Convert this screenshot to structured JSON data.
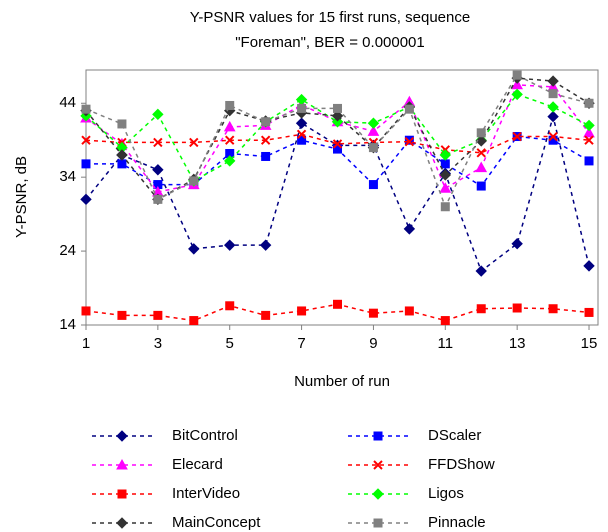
{
  "chart_data": {
    "type": "line",
    "title": [
      "Y-PSNR values for 15 first runs, sequence",
      "\"Foreman\", BER = 0.000001"
    ],
    "x_label": "Number of run",
    "y_label": "Y-PSNR, dB",
    "x": [
      1,
      2,
      3,
      4,
      5,
      6,
      7,
      8,
      9,
      10,
      11,
      12,
      13,
      14,
      15
    ],
    "xlim": [
      1,
      15.25
    ],
    "xticks": [
      1,
      3,
      5,
      7,
      9,
      11,
      13,
      15
    ],
    "ylim": [
      14,
      48.5
    ],
    "yticks": [
      14,
      24,
      34,
      44
    ],
    "grid": false,
    "legend": "bottom",
    "series": [
      {
        "name": "BitControl",
        "color": "#000080",
        "marker": "diamond",
        "values": [
          31,
          37,
          35,
          24.3,
          24.8,
          24.8,
          41.3,
          38.3,
          38.3,
          27,
          34.5,
          21.3,
          25,
          42.2,
          22
        ]
      },
      {
        "name": "DScaler",
        "color": "#0000ff",
        "marker": "square",
        "values": [
          35.8,
          35.8,
          33,
          33,
          37.2,
          36.8,
          39,
          37.8,
          33,
          39,
          35.8,
          32.8,
          39.5,
          39,
          36.2
        ]
      },
      {
        "name": "Elecard",
        "color": "#ff00ff",
        "marker": "triangle",
        "values": [
          42,
          38.5,
          32,
          33,
          40.8,
          41,
          43.8,
          41.5,
          40.2,
          44.2,
          32.5,
          35.3,
          46.5,
          46.2,
          40
        ]
      },
      {
        "name": "FFDShow",
        "color": "#ff0000",
        "marker": "x",
        "values": [
          39,
          38.7,
          38.7,
          38.7,
          39,
          39,
          39.8,
          38.5,
          38.7,
          38.8,
          37.7,
          37.3,
          39.5,
          39.5,
          39
        ]
      },
      {
        "name": "InterVideo",
        "color": "#ff0000",
        "marker": "square",
        "values": [
          15.9,
          15.3,
          15.3,
          14.6,
          16.6,
          15.3,
          15.9,
          16.8,
          15.6,
          15.9,
          14.6,
          16.2,
          16.3,
          16.2,
          15.7
        ]
      },
      {
        "name": "Ligos",
        "color": "#00ff00",
        "marker": "diamond",
        "values": [
          42.3,
          38,
          42.5,
          33.5,
          36.2,
          41.5,
          44.5,
          41.5,
          41.3,
          43.5,
          37,
          39,
          45.2,
          43.5,
          41
        ]
      },
      {
        "name": "MainConcept",
        "color": "#333333",
        "marker": "diamond",
        "values": [
          43,
          37,
          31,
          33.7,
          43,
          41.6,
          42.7,
          42.3,
          38,
          43.5,
          34.3,
          38.9,
          47.4,
          47,
          44
        ]
      },
      {
        "name": "Pinnacle",
        "color": "#808080",
        "marker": "square",
        "values": [
          43.2,
          41.2,
          31,
          33.5,
          43.7,
          41.5,
          43.3,
          43.3,
          38,
          43.2,
          30,
          40,
          47.8,
          45.3,
          44
        ]
      }
    ]
  }
}
